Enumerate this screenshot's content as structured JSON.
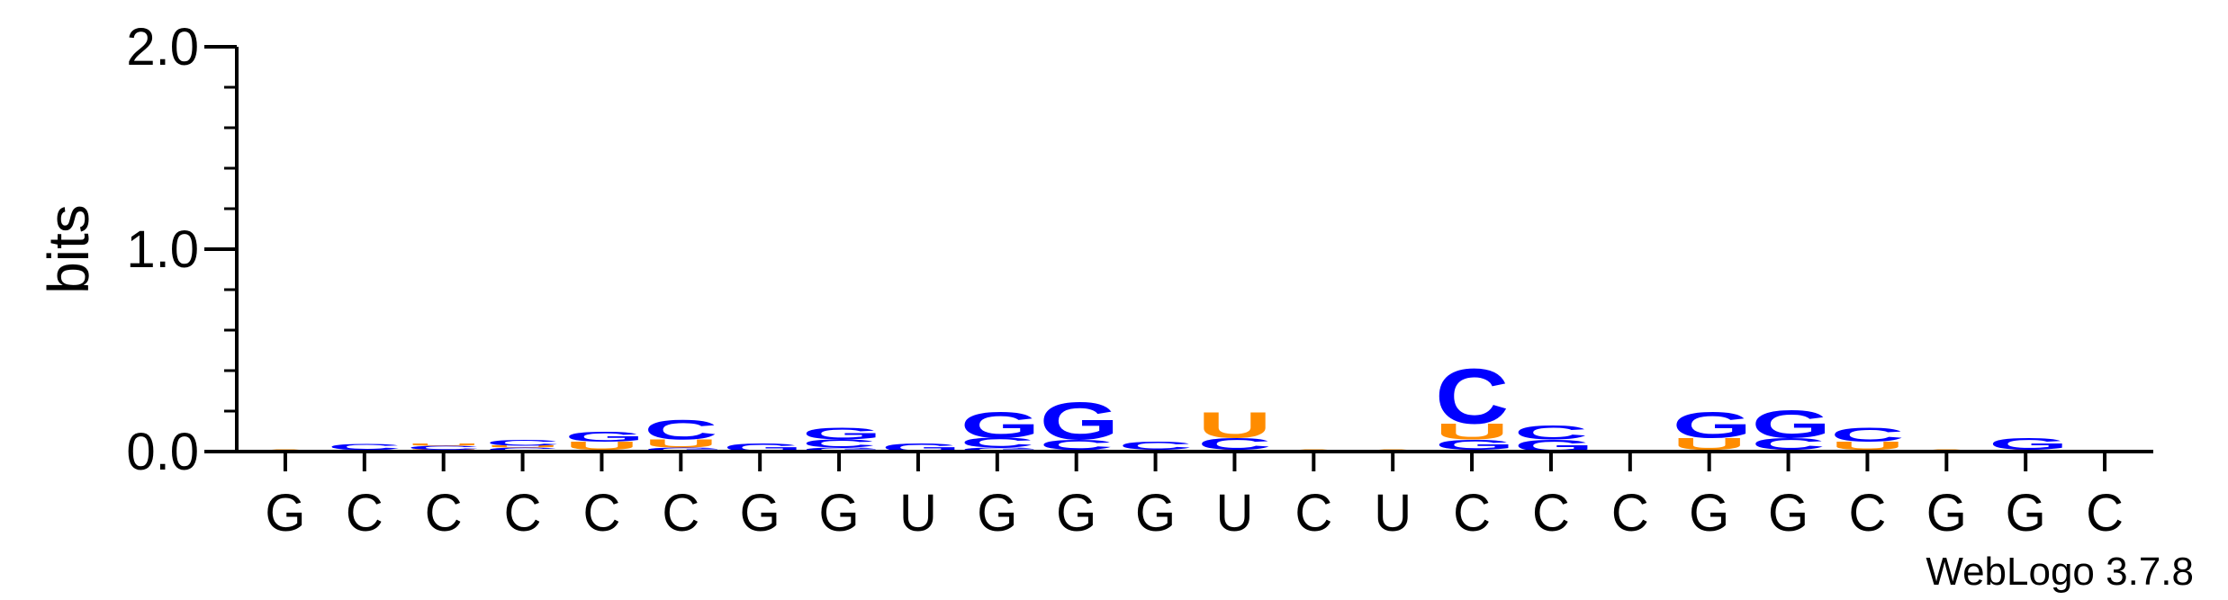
{
  "chart_data": {
    "type": "sequence-logo",
    "ylabel": "bits",
    "ylim": [
      0,
      2
    ],
    "yticks": [
      "0.0",
      "1.0",
      "2.0"
    ],
    "yticks_values": [
      0,
      1,
      2
    ],
    "positions": [
      "G",
      "C",
      "C",
      "C",
      "C",
      "C",
      "G",
      "G",
      "U",
      "G",
      "G",
      "G",
      "U",
      "C",
      "U",
      "C",
      "C",
      "C",
      "G",
      "G",
      "C",
      "G",
      "G",
      "C"
    ],
    "colors": {
      "G": "#0000ff",
      "C": "#0000ff",
      "U": "#ff8c00",
      "A": "#ff8c00"
    },
    "stacks": [
      [
        [
          "A",
          0.01
        ]
      ],
      [
        [
          "C",
          0.01
        ],
        [
          "C",
          0.03
        ]
      ],
      [
        [
          "U",
          0.01
        ],
        [
          "C",
          0.02
        ],
        [
          "U",
          0.01
        ]
      ],
      [
        [
          "C",
          0.02
        ],
        [
          "U",
          0.01
        ],
        [
          "C",
          0.03
        ]
      ],
      [
        [
          "A",
          0.01
        ],
        [
          "U",
          0.04
        ],
        [
          "G",
          0.05
        ]
      ],
      [
        [
          "G",
          0.02
        ],
        [
          "U",
          0.04
        ],
        [
          "C",
          0.1
        ]
      ],
      [
        [
          "G",
          0.04
        ]
      ],
      [
        [
          "G",
          0.02
        ],
        [
          "C",
          0.04
        ],
        [
          "G",
          0.06
        ]
      ],
      [
        [
          "G",
          0.04
        ]
      ],
      [
        [
          "G",
          0.02
        ],
        [
          "C",
          0.05
        ],
        [
          "G",
          0.13
        ]
      ],
      [
        [
          "G",
          0.01
        ],
        [
          "C",
          0.05
        ],
        [
          "G",
          0.19
        ]
      ],
      [
        [
          "A",
          0.01
        ],
        [
          "C",
          0.04
        ]
      ],
      [
        [
          "A",
          0.01
        ],
        [
          "C",
          0.06
        ],
        [
          "U",
          0.13
        ]
      ],
      [
        [
          "A",
          0.01
        ]
      ],
      [
        [
          "A",
          0.01
        ]
      ],
      [
        [
          "A",
          0.01
        ],
        [
          "G",
          0.05
        ],
        [
          "U",
          0.08
        ],
        [
          "C",
          0.28
        ]
      ],
      [
        [
          "G",
          0.06
        ],
        [
          "C",
          0.07
        ]
      ],
      [],
      [
        [
          "A",
          0.01
        ],
        [
          "U",
          0.06
        ],
        [
          "G",
          0.13
        ]
      ],
      [
        [
          "A",
          0.01
        ],
        [
          "C",
          0.06
        ],
        [
          "G",
          0.14
        ]
      ],
      [
        [
          "A",
          0.01
        ],
        [
          "U",
          0.04
        ],
        [
          "C",
          0.07
        ]
      ],
      [
        [
          "A",
          0.01
        ]
      ],
      [
        [
          "A",
          0.01
        ],
        [
          "G",
          0.06
        ]
      ],
      []
    ]
  },
  "footer": {
    "credit": "WebLogo 3.7.8"
  }
}
